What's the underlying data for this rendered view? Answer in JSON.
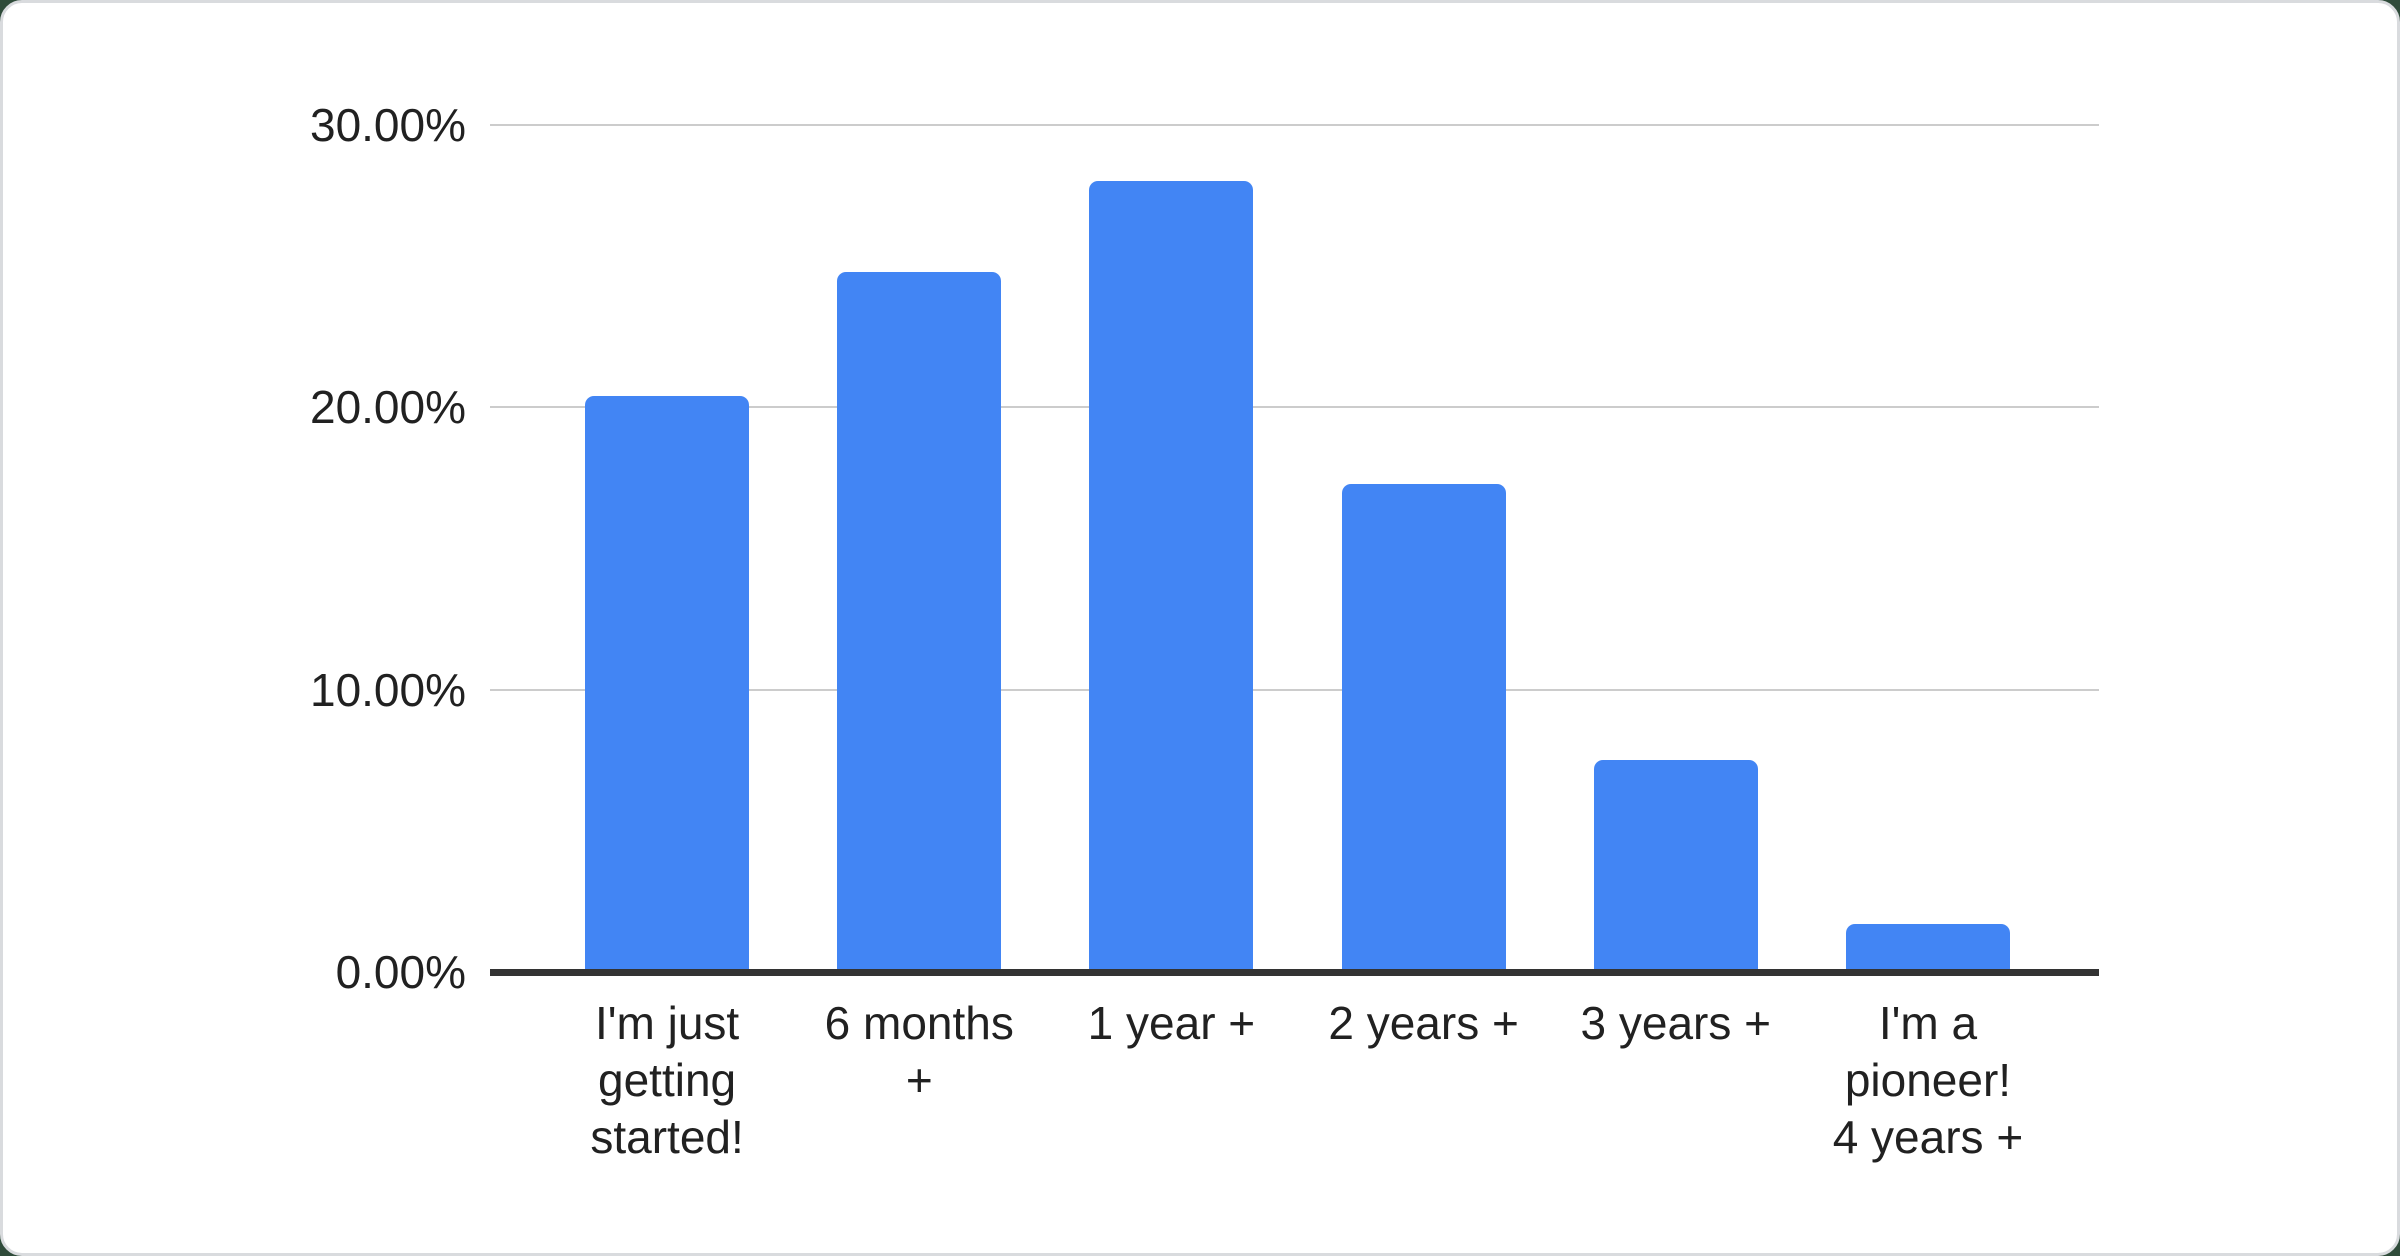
{
  "page": {
    "background_color": "#2f4b3a"
  },
  "card": {
    "background_color": "#ffffff",
    "border_color": "#d9dbde"
  },
  "chart_data": {
    "type": "bar",
    "title": "",
    "xlabel": "",
    "ylabel": "",
    "categories": [
      "I'm just getting started!",
      "6 months +",
      "1 year +",
      "2 years +",
      "3 years +",
      "I'm a pioneer! 4 years +"
    ],
    "categories_wrapped": [
      "I'm just\ngetting\nstarted!",
      "6 months\n+",
      "1 year +",
      "2 years +",
      "3 years +",
      "I'm a\npioneer!\n4 years +"
    ],
    "values": [
      20.4,
      24.8,
      28.0,
      17.3,
      7.5,
      1.7
    ],
    "unit": "%",
    "ylim": [
      0,
      30
    ],
    "grid": true,
    "legend": "none",
    "y_axis": {
      "ticks": [
        {
          "label": "30.00%",
          "value": 30
        },
        {
          "label": "20.00%",
          "value": 20
        },
        {
          "label": "10.00%",
          "value": 10
        },
        {
          "label": "0.00%",
          "value": 0
        }
      ]
    },
    "bar_color": "#4285f4",
    "gridline_color": "#cccccc",
    "axis_line_color": "#333333",
    "text_color": "#212121"
  }
}
